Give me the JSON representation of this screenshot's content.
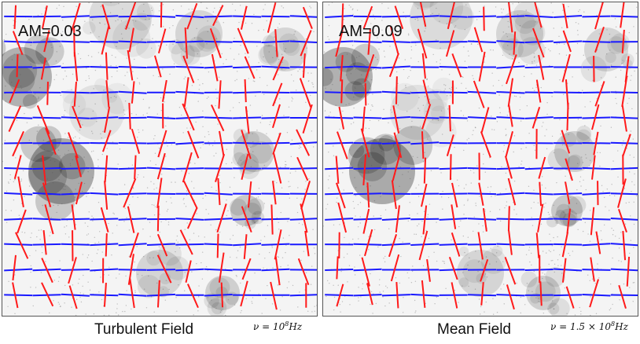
{
  "panels": [
    {
      "am_label": "AM=0.03",
      "caption": "Turbulent Field",
      "frequency": {
        "prefix": "ν = 10",
        "exponent": "8",
        "unit": "Hz"
      },
      "turbulence": 1.0
    },
    {
      "am_label": "AM=0.09",
      "caption": "Mean Field",
      "frequency": {
        "prefix": "ν = 1.5 × 10",
        "exponent": "8",
        "unit": "Hz"
      },
      "turbulence": 0.8
    }
  ],
  "colors": {
    "blue_vectors": "#1a1aff",
    "red_vectors": "#ff1a1a",
    "background_dust": "#000000"
  },
  "grid": {
    "rows": 12,
    "cols": 11
  }
}
